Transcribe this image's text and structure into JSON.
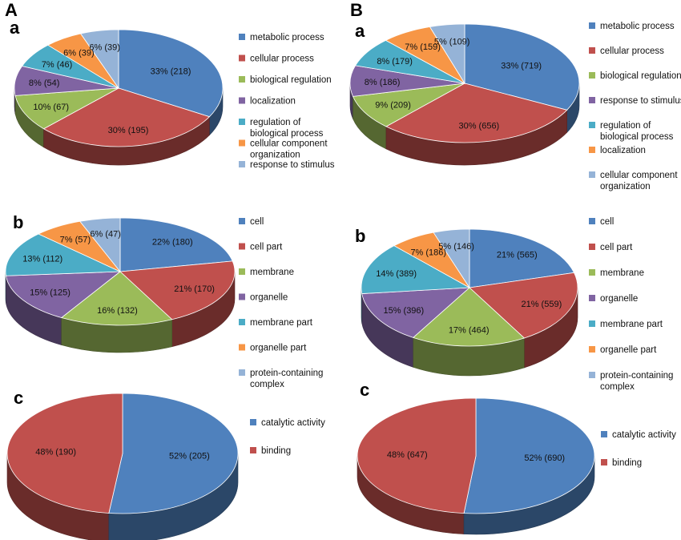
{
  "panel_labels": [
    "A",
    "B"
  ],
  "colors": {
    "blue": "#4f81bd",
    "red": "#c0504d",
    "green": "#9bbb59",
    "purple": "#8064a2",
    "teal": "#4bacc6",
    "orange": "#f79646",
    "lightblue": "#95b3d7"
  },
  "chart_data": [
    {
      "type": "pie",
      "panel": "A",
      "sub": "a",
      "slices": [
        {
          "label": "metabolic process",
          "percent": 33,
          "count": 218,
          "text": "33% (218)",
          "color": "blue"
        },
        {
          "label": "cellular process",
          "percent": 30,
          "count": 195,
          "text": "30% (195)",
          "color": "red"
        },
        {
          "label": "biological regulation",
          "percent": 10,
          "count": 67,
          "text": "10% (67)",
          "color": "green"
        },
        {
          "label": "localization",
          "percent": 8,
          "count": 54,
          "text": "8% (54)",
          "color": "purple"
        },
        {
          "label": "regulation of biological process",
          "percent": 7,
          "count": 46,
          "text": "7% (46)",
          "color": "teal"
        },
        {
          "label": "cellular component organization",
          "percent": 6,
          "count": 39,
          "text": "6% (39)",
          "color": "orange"
        },
        {
          "label": "response to stimulus",
          "percent": 6,
          "count": 39,
          "text": "6% (39)",
          "color": "lightblue"
        }
      ],
      "legend": [
        {
          "color": "blue",
          "lines": [
            "metabolic process"
          ]
        },
        {
          "color": "red",
          "lines": [
            "cellular process"
          ]
        },
        {
          "color": "green",
          "lines": [
            "biological regulation"
          ]
        },
        {
          "color": "purple",
          "lines": [
            "localization"
          ]
        },
        {
          "color": "teal",
          "lines": [
            "regulation of",
            "biological process"
          ]
        },
        {
          "color": "orange",
          "lines": [
            "cellular component",
            "organization"
          ]
        },
        {
          "color": "lightblue",
          "lines": [
            "response to stimulus"
          ]
        }
      ]
    },
    {
      "type": "pie",
      "panel": "B",
      "sub": "a",
      "slices": [
        {
          "label": "metabolic process",
          "percent": 33,
          "count": 719,
          "text": "33% (719)",
          "color": "blue"
        },
        {
          "label": "cellular process",
          "percent": 30,
          "count": 656,
          "text": "30% (656)",
          "color": "red"
        },
        {
          "label": "biological regulation",
          "percent": 9,
          "count": 209,
          "text": "9% (209)",
          "color": "green"
        },
        {
          "label": "response to stimulus",
          "percent": 8,
          "count": 186,
          "text": "8% (186)",
          "color": "purple"
        },
        {
          "label": "regulation of biological process",
          "percent": 8,
          "count": 179,
          "text": "8% (179)",
          "color": "teal"
        },
        {
          "label": "localization",
          "percent": 7,
          "count": 159,
          "text": "7% (159)",
          "color": "orange"
        },
        {
          "label": "cellular component organization",
          "percent": 5,
          "count": 109,
          "text": "5% (109)",
          "color": "lightblue"
        }
      ],
      "legend": [
        {
          "color": "blue",
          "lines": [
            "metabolic process"
          ]
        },
        {
          "color": "red",
          "lines": [
            "cellular process"
          ]
        },
        {
          "color": "green",
          "lines": [
            "biological regulation"
          ]
        },
        {
          "color": "purple",
          "lines": [
            "response to stimulus"
          ]
        },
        {
          "color": "teal",
          "lines": [
            "regulation of",
            "biological process"
          ]
        },
        {
          "color": "orange",
          "lines": [
            "localization"
          ]
        },
        {
          "color": "lightblue",
          "lines": [
            "cellular component",
            "organization"
          ]
        }
      ]
    },
    {
      "type": "pie",
      "panel": "A",
      "sub": "b",
      "slices": [
        {
          "label": "cell",
          "percent": 22,
          "count": 180,
          "text": "22% (180)",
          "color": "blue"
        },
        {
          "label": "cell part",
          "percent": 21,
          "count": 170,
          "text": "21% (170)",
          "color": "red"
        },
        {
          "label": "membrane",
          "percent": 16,
          "count": 132,
          "text": "16% (132)",
          "color": "green"
        },
        {
          "label": "organelle",
          "percent": 15,
          "count": 125,
          "text": "15% (125)",
          "color": "purple"
        },
        {
          "label": "membrane part",
          "percent": 13,
          "count": 112,
          "text": "13% (112)",
          "color": "teal"
        },
        {
          "label": "organelle part",
          "percent": 7,
          "count": 57,
          "text": "7% (57)",
          "color": "orange"
        },
        {
          "label": "protein-containing complex",
          "percent": 6,
          "count": 47,
          "text": "6% (47)",
          "color": "lightblue"
        }
      ],
      "legend": [
        {
          "color": "blue",
          "lines": [
            "cell"
          ]
        },
        {
          "color": "red",
          "lines": [
            "cell part"
          ]
        },
        {
          "color": "green",
          "lines": [
            "membrane"
          ]
        },
        {
          "color": "purple",
          "lines": [
            "organelle"
          ]
        },
        {
          "color": "teal",
          "lines": [
            "membrane part"
          ]
        },
        {
          "color": "orange",
          "lines": [
            "organelle part"
          ]
        },
        {
          "color": "lightblue",
          "lines": [
            "protein-containing",
            "complex"
          ]
        }
      ]
    },
    {
      "type": "pie",
      "panel": "B",
      "sub": "b",
      "slices": [
        {
          "label": "cell",
          "percent": 21,
          "count": 565,
          "text": "21% (565)",
          "color": "blue"
        },
        {
          "label": "cell part",
          "percent": 21,
          "count": 559,
          "text": "21% (559)",
          "color": "red"
        },
        {
          "label": "membrane",
          "percent": 17,
          "count": 464,
          "text": "17% (464)",
          "color": "green"
        },
        {
          "label": "organelle",
          "percent": 15,
          "count": 396,
          "text": "15% (396)",
          "color": "purple"
        },
        {
          "label": "membrane part",
          "percent": 14,
          "count": 389,
          "text": "14% (389)",
          "color": "teal"
        },
        {
          "label": "organelle part",
          "percent": 7,
          "count": 186,
          "text": "7% (186)",
          "color": "orange"
        },
        {
          "label": "protein-containing complex",
          "percent": 5,
          "count": 146,
          "text": "5% (146)",
          "color": "lightblue"
        }
      ],
      "legend": [
        {
          "color": "blue",
          "lines": [
            "cell"
          ]
        },
        {
          "color": "red",
          "lines": [
            "cell part"
          ]
        },
        {
          "color": "green",
          "lines": [
            "membrane"
          ]
        },
        {
          "color": "purple",
          "lines": [
            "organelle"
          ]
        },
        {
          "color": "teal",
          "lines": [
            "membrane part"
          ]
        },
        {
          "color": "orange",
          "lines": [
            "organelle part"
          ]
        },
        {
          "color": "lightblue",
          "lines": [
            "protein-containing",
            "complex"
          ]
        }
      ]
    },
    {
      "type": "pie",
      "panel": "A",
      "sub": "c",
      "slices": [
        {
          "label": "catalytic activity",
          "percent": 52,
          "count": 205,
          "text": "52% (205)",
          "color": "blue"
        },
        {
          "label": "binding",
          "percent": 48,
          "count": 190,
          "text": "48% (190)",
          "color": "red"
        }
      ],
      "legend": [
        {
          "color": "blue",
          "lines": [
            "catalytic activity"
          ]
        },
        {
          "color": "red",
          "lines": [
            "binding"
          ]
        }
      ]
    },
    {
      "type": "pie",
      "panel": "B",
      "sub": "c",
      "slices": [
        {
          "label": "catalytic activity",
          "percent": 52,
          "count": 690,
          "text": "52% (690)",
          "color": "blue"
        },
        {
          "label": "binding",
          "percent": 48,
          "count": 647,
          "text": "48% (647)",
          "color": "red"
        }
      ],
      "legend": [
        {
          "color": "blue",
          "lines": [
            "catalytic activity"
          ]
        },
        {
          "color": "red",
          "lines": [
            "binding"
          ]
        }
      ]
    }
  ]
}
